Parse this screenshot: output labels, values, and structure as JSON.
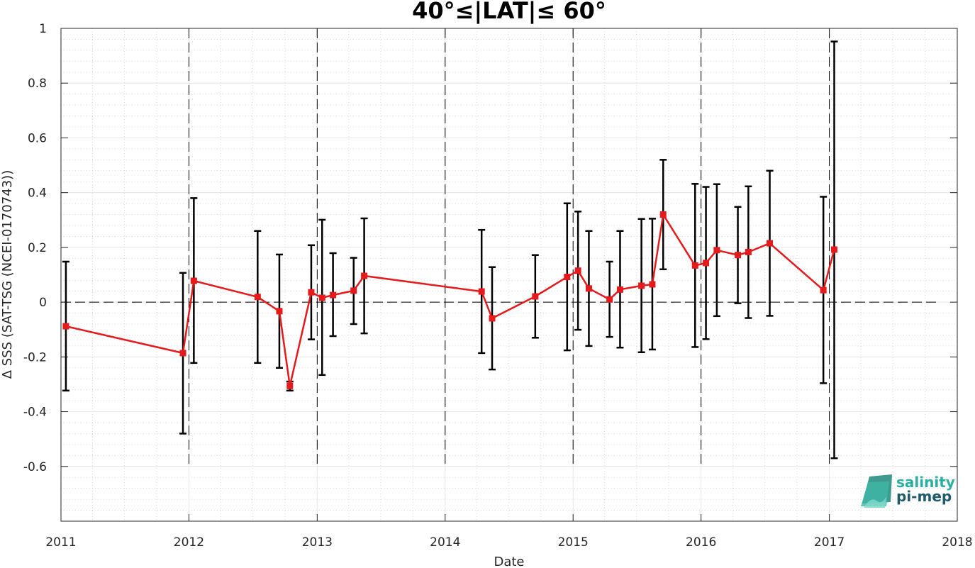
{
  "chart_data": {
    "type": "line",
    "title": "40°≤|LAT|≤ 60°",
    "xlabel": "Date",
    "ylabel": "Δ SSS (SAT-TSG (NCEI-0170743))",
    "xlim": [
      "2011-01-01",
      "2018-01-01"
    ],
    "ylim": [
      -0.8,
      1.0
    ],
    "x_tick_labels": [
      "2011",
      "2012",
      "2013",
      "2014",
      "2015",
      "2016",
      "2017",
      "2018"
    ],
    "y_tick_labels": [
      "1",
      "0.8",
      "0.6",
      "0.4",
      "0.2",
      "0",
      "-0.2",
      "-0.4",
      "-0.6"
    ],
    "y_ticks": [
      1,
      0.8,
      0.6,
      0.4,
      0.2,
      0,
      -0.2,
      -0.4,
      -0.6
    ],
    "grid": true,
    "minor_grid": true,
    "reference_line_y": 0,
    "year_divider_lines": [
      "2012-01-01",
      "2013-01-01",
      "2014-01-01",
      "2015-01-01",
      "2016-01-01",
      "2017-01-01"
    ],
    "series": [
      {
        "color": "#e41a1c",
        "marker": "square",
        "points": [
          {
            "x": "2011-01-15",
            "y": -0.088,
            "lo": -0.323,
            "hi": 0.148
          },
          {
            "x": "2011-12-15",
            "y": -0.186,
            "lo": -0.48,
            "hi": 0.107
          },
          {
            "x": "2012-01-15",
            "y": 0.078,
            "lo": -0.222,
            "hi": 0.38
          },
          {
            "x": "2012-07-15",
            "y": 0.019,
            "lo": -0.222,
            "hi": 0.26
          },
          {
            "x": "2012-09-15",
            "y": -0.033,
            "lo": -0.24,
            "hi": 0.174
          },
          {
            "x": "2012-10-15",
            "y": -0.306,
            "lo": -0.323,
            "hi": -0.29
          },
          {
            "x": "2012-12-15",
            "y": 0.036,
            "lo": -0.136,
            "hi": 0.208
          },
          {
            "x": "2013-01-15",
            "y": 0.016,
            "lo": -0.266,
            "hi": 0.301
          },
          {
            "x": "2013-02-15",
            "y": 0.026,
            "lo": -0.124,
            "hi": 0.179
          },
          {
            "x": "2013-04-15",
            "y": 0.042,
            "lo": -0.08,
            "hi": 0.162
          },
          {
            "x": "2013-05-15",
            "y": 0.096,
            "lo": -0.114,
            "hi": 0.306
          },
          {
            "x": "2014-04-15",
            "y": 0.039,
            "lo": -0.186,
            "hi": 0.264
          },
          {
            "x": "2014-05-15",
            "y": -0.059,
            "lo": -0.246,
            "hi": 0.128
          },
          {
            "x": "2014-09-15",
            "y": 0.021,
            "lo": -0.13,
            "hi": 0.172
          },
          {
            "x": "2014-12-15",
            "y": 0.092,
            "lo": -0.176,
            "hi": 0.361
          },
          {
            "x": "2015-01-15",
            "y": 0.115,
            "lo": -0.101,
            "hi": 0.331
          },
          {
            "x": "2015-02-15",
            "y": 0.05,
            "lo": -0.16,
            "hi": 0.26
          },
          {
            "x": "2015-04-15",
            "y": 0.01,
            "lo": -0.127,
            "hi": 0.148
          },
          {
            "x": "2015-05-15",
            "y": 0.046,
            "lo": -0.166,
            "hi": 0.26
          },
          {
            "x": "2015-07-15",
            "y": 0.06,
            "lo": -0.183,
            "hi": 0.304
          },
          {
            "x": "2015-08-15",
            "y": 0.065,
            "lo": -0.173,
            "hi": 0.305
          },
          {
            "x": "2015-09-15",
            "y": 0.32,
            "lo": 0.12,
            "hi": 0.52
          },
          {
            "x": "2015-12-15",
            "y": 0.134,
            "lo": -0.164,
            "hi": 0.432
          },
          {
            "x": "2016-01-15",
            "y": 0.143,
            "lo": -0.135,
            "hi": 0.421
          },
          {
            "x": "2016-02-15",
            "y": 0.19,
            "lo": -0.051,
            "hi": 0.431
          },
          {
            "x": "2016-04-15",
            "y": 0.172,
            "lo": -0.004,
            "hi": 0.348
          },
          {
            "x": "2016-05-15",
            "y": 0.183,
            "lo": -0.058,
            "hi": 0.423
          },
          {
            "x": "2016-07-15",
            "y": 0.215,
            "lo": -0.05,
            "hi": 0.48
          },
          {
            "x": "2016-12-15",
            "y": 0.044,
            "lo": -0.296,
            "hi": 0.385
          },
          {
            "x": "2017-01-15",
            "y": 0.192,
            "lo": -0.57,
            "hi": 0.952
          }
        ]
      }
    ]
  },
  "logo": {
    "line1": "salinity",
    "line2": "pi-mep",
    "color1": "#2ab0a0",
    "color2": "#1f5c6b"
  }
}
